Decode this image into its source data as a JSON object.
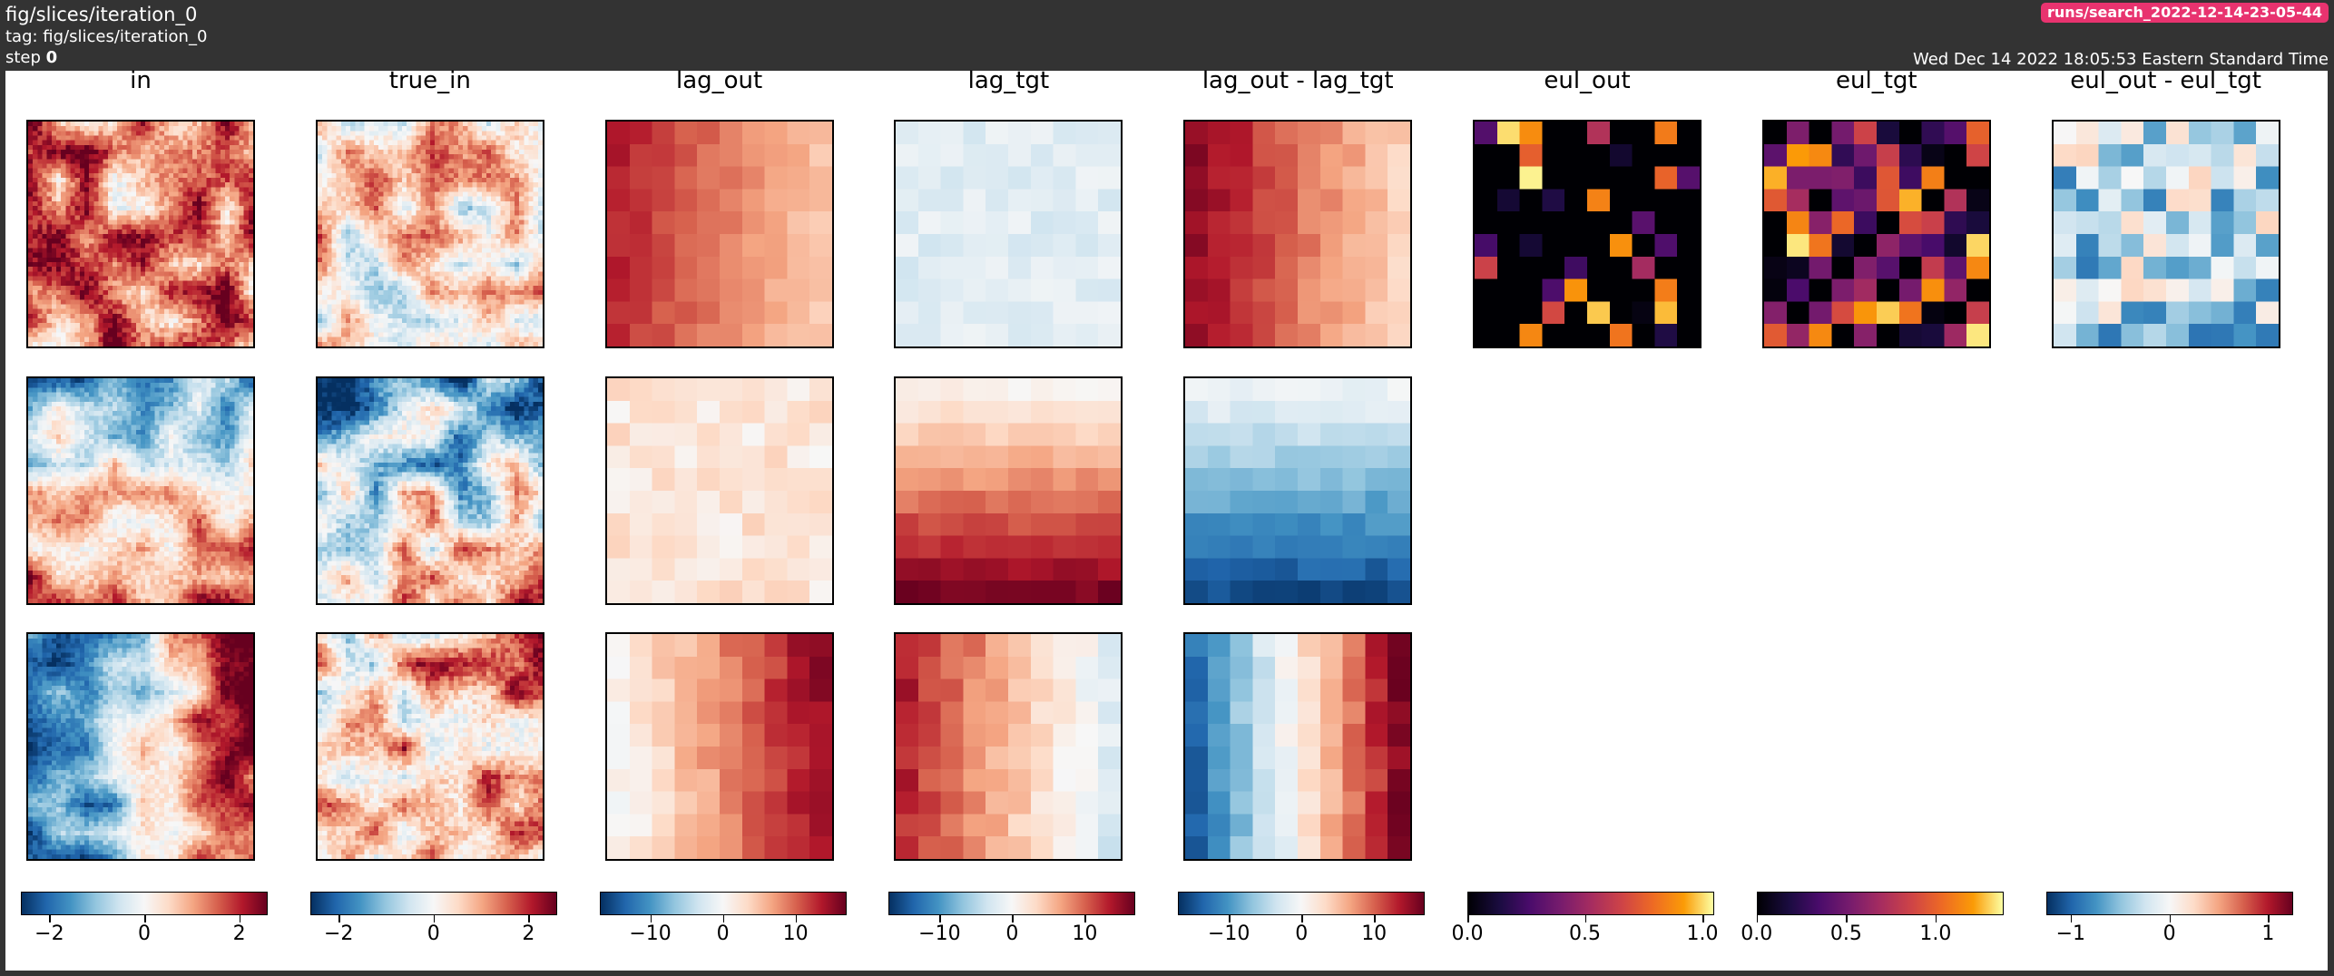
{
  "header": {
    "title": "fig/slices/iteration_0",
    "tag": "tag: fig/slices/iteration_0",
    "step_label": "step",
    "step_value": "0",
    "run": "runs/search_2022-12-14-23-05-44",
    "timestamp": "Wed Dec 14 2022 18:05:53 Eastern Standard Time"
  },
  "columns": [
    {
      "title": "in",
      "cmap": "RdBu_r",
      "colorbar": {
        "ticks": [
          -2,
          0,
          2
        ],
        "labels": [
          "−2",
          "0",
          "2"
        ],
        "vmin": -2.6,
        "vmax": 2.6
      }
    },
    {
      "title": "true_in",
      "cmap": "RdBu_r",
      "colorbar": {
        "ticks": [
          -2,
          0,
          2
        ],
        "labels": [
          "−2",
          "0",
          "2"
        ],
        "vmin": -2.6,
        "vmax": 2.6
      }
    },
    {
      "title": "lag_out",
      "cmap": "RdBu_r",
      "colorbar": {
        "ticks": [
          -10,
          0,
          10
        ],
        "labels": [
          "−10",
          "0",
          "10"
        ],
        "vmin": -17,
        "vmax": 17
      }
    },
    {
      "title": "lag_tgt",
      "cmap": "RdBu_r",
      "colorbar": {
        "ticks": [
          -10,
          0,
          10
        ],
        "labels": [
          "−10",
          "0",
          "10"
        ],
        "vmin": -17,
        "vmax": 17
      }
    },
    {
      "title": "lag_out - lag_tgt",
      "cmap": "RdBu_r",
      "colorbar": {
        "ticks": [
          -10,
          0,
          10
        ],
        "labels": [
          "−10",
          "0",
          "10"
        ],
        "vmin": -17,
        "vmax": 17
      }
    },
    {
      "title": "eul_out",
      "cmap": "inferno",
      "colorbar": {
        "ticks": [
          0.0,
          0.5,
          1.0
        ],
        "labels": [
          "0.0",
          "0.5",
          "1.0"
        ],
        "vmin": 0,
        "vmax": 1.05
      }
    },
    {
      "title": "eul_tgt",
      "cmap": "inferno",
      "colorbar": {
        "ticks": [
          0.0,
          0.5,
          1.0
        ],
        "labels": [
          "0.0",
          "0.5",
          "1.0"
        ],
        "vmin": 0,
        "vmax": 1.38
      }
    },
    {
      "title": "eul_out - eul_tgt",
      "cmap": "RdBu_r",
      "colorbar": {
        "ticks": [
          -1,
          0,
          1
        ],
        "labels": [
          "−1",
          "0",
          "1"
        ],
        "vmin": -1.25,
        "vmax": 1.25
      }
    }
  ],
  "panels": [
    {
      "row": 0,
      "col": 0,
      "n": 48,
      "pattern": "noise",
      "bias": 0.55,
      "amp": 0.5,
      "seed": 11
    },
    {
      "row": 0,
      "col": 1,
      "n": 48,
      "pattern": "noise",
      "bias": 0.15,
      "amp": 0.45,
      "seed": 12
    },
    {
      "row": 0,
      "col": 2,
      "n": 10,
      "pattern": "gradx",
      "from": 0.75,
      "to": 0.25,
      "noise": 0.05,
      "seed": 13
    },
    {
      "row": 0,
      "col": 3,
      "n": 10,
      "pattern": "flat",
      "bias": -0.12,
      "amp": 0.08,
      "seed": 14
    },
    {
      "row": 0,
      "col": 4,
      "n": 10,
      "pattern": "gradx",
      "from": 0.85,
      "to": 0.2,
      "noise": 0.06,
      "seed": 15
    },
    {
      "row": 0,
      "col": 5,
      "n": 10,
      "pattern": "sparse",
      "density": 0.3,
      "seed": 16
    },
    {
      "row": 0,
      "col": 6,
      "n": 10,
      "pattern": "sparse",
      "density": 0.85,
      "seed": 17
    },
    {
      "row": 0,
      "col": 7,
      "n": 10,
      "pattern": "flat",
      "bias": -0.25,
      "amp": 0.5,
      "seed": 18
    },
    {
      "row": 1,
      "col": 0,
      "n": 48,
      "pattern": "bands",
      "top": -0.6,
      "bottom": 0.75,
      "amp": 0.45,
      "seed": 21
    },
    {
      "row": 1,
      "col": 1,
      "n": 48,
      "pattern": "bands",
      "top": -0.55,
      "bottom": 0.35,
      "amp": 0.55,
      "seed": 22
    },
    {
      "row": 1,
      "col": 2,
      "n": 10,
      "pattern": "flat",
      "bias": 0.12,
      "amp": 0.12,
      "seed": 23
    },
    {
      "row": 1,
      "col": 3,
      "n": 10,
      "pattern": "grady",
      "from": 0.05,
      "to": 0.95,
      "noise": 0.05,
      "seed": 24
    },
    {
      "row": 1,
      "col": 4,
      "n": 10,
      "pattern": "grady",
      "from": -0.05,
      "to": -0.9,
      "noise": 0.06,
      "seed": 25
    },
    {
      "row": 2,
      "col": 0,
      "n": 48,
      "pattern": "split",
      "left": -0.65,
      "right": 0.75,
      "amp": 0.4,
      "seed": 31
    },
    {
      "row": 2,
      "col": 1,
      "n": 48,
      "pattern": "split",
      "left": 0.25,
      "right": 0.45,
      "amp": 0.55,
      "seed": 32
    },
    {
      "row": 2,
      "col": 2,
      "n": 10,
      "pattern": "gradx",
      "from": 0.0,
      "to": 0.85,
      "noise": 0.08,
      "seed": 33
    },
    {
      "row": 2,
      "col": 3,
      "n": 10,
      "pattern": "gradx",
      "from": 0.75,
      "to": -0.15,
      "noise": 0.08,
      "seed": 34
    },
    {
      "row": 2,
      "col": 4,
      "n": 10,
      "pattern": "gradx",
      "from": -0.8,
      "to": 0.9,
      "noise": 0.08,
      "seed": 35
    }
  ]
}
